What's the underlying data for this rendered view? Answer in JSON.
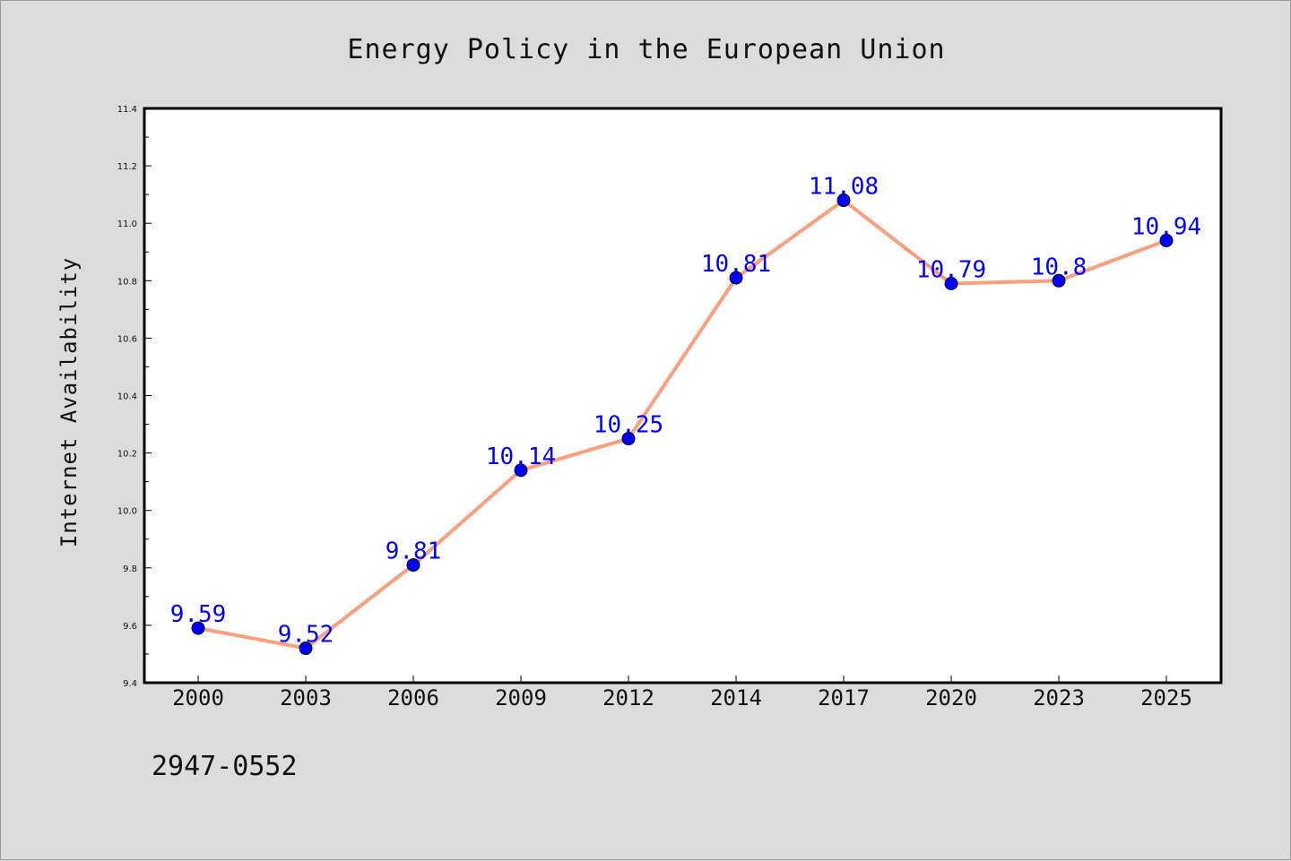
{
  "chart_data": {
    "type": "line",
    "title": "Energy Policy in the European Union",
    "xlabel": "",
    "ylabel": "Internet Availability",
    "categories": [
      "2000",
      "2003",
      "2006",
      "2009",
      "2012",
      "2014",
      "2017",
      "2020",
      "2023",
      "2025"
    ],
    "series": [
      {
        "values": [
          9.59,
          9.52,
          9.81,
          10.14,
          10.25,
          10.81,
          11.08,
          10.79,
          10.8,
          10.94
        ],
        "data_labels": [
          "9.59",
          "9.52",
          "9.81",
          "10.14",
          "10.25",
          "10.81",
          "11.08",
          "10.79",
          "10.8",
          "10.94"
        ],
        "line_color": "#fa9e7c",
        "marker_color": "#0000ff"
      }
    ],
    "ylim": [
      9.4,
      11.4
    ],
    "yticks": [
      "9.4",
      "9.6",
      "9.8",
      "10.0",
      "10.2",
      "10.4",
      "10.6",
      "10.8",
      "11.0",
      "11.2",
      "11.4"
    ],
    "grid": false,
    "legend": "none"
  },
  "footer": {
    "code": "2947-0552"
  },
  "colors": {
    "background": "#dcdcdc",
    "plot_background": "#ffffff",
    "line": "#fa9e7c",
    "marker": "#0000ff",
    "label": "#0000ff"
  }
}
